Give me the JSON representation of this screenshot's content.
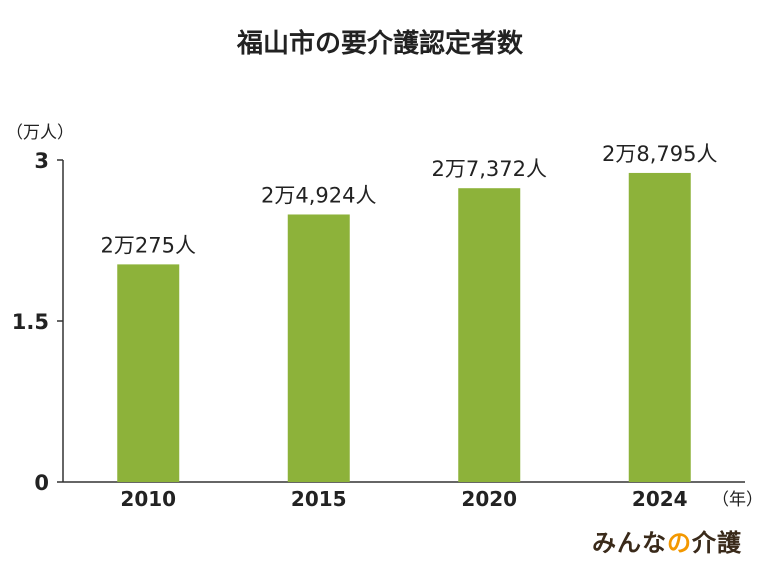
{
  "chart_data": {
    "type": "bar",
    "title": "福山市の要介護認定者数",
    "ylabel": "（万人）",
    "xlabel": "（年）",
    "categories": [
      "2010",
      "2015",
      "2020",
      "2024"
    ],
    "values": [
      2.0275,
      2.4924,
      2.7372,
      2.8795
    ],
    "data_labels": [
      "2万275人",
      "2万4,924人",
      "2万7,372人",
      "2万8,795人"
    ],
    "yticks": [
      "0",
      "1.5",
      "3"
    ],
    "ylim": [
      0,
      3
    ],
    "grid": false,
    "bar_color": "#8db23a"
  },
  "brand": {
    "main": "みんな",
    "accent": "の",
    "main2": "介護"
  }
}
